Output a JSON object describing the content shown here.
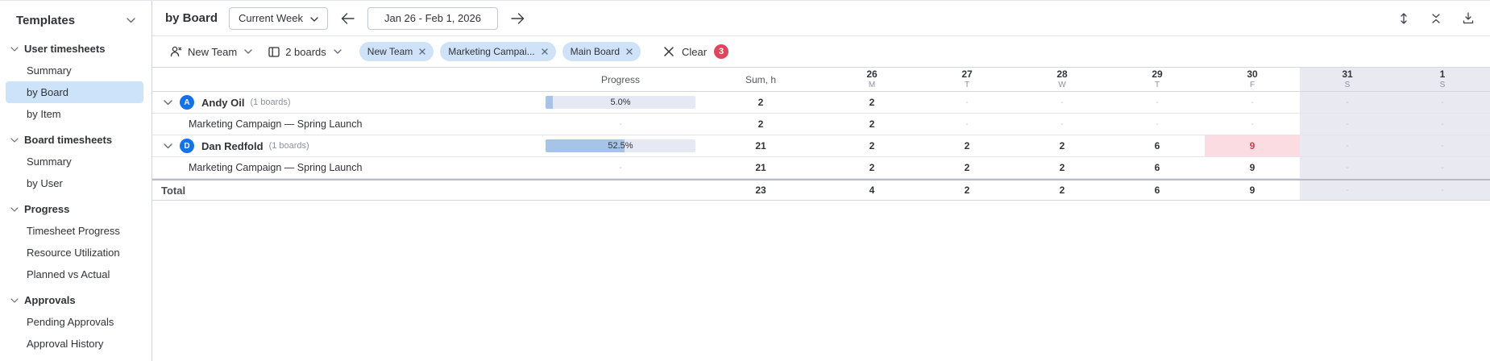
{
  "colors": {
    "selected_bg": "#cde3fa",
    "chip_bg": "#cfe2f8",
    "badge_bg": "#e2445c",
    "avatar_bg": "#1473e6",
    "progress_track": "#e6e8f4",
    "progress_fill": "#a6c4e8",
    "weekend_bg": "#e9e9f2",
    "alert_bg": "#fadce2",
    "alert_text": "#d83a52"
  },
  "sidebar": {
    "title": "Templates",
    "groups": [
      {
        "label": "User timesheets",
        "items": [
          {
            "label": "Summary",
            "selected": false
          },
          {
            "label": "by Board",
            "selected": true
          },
          {
            "label": "by Item",
            "selected": false
          }
        ]
      },
      {
        "label": "Board timesheets",
        "items": [
          {
            "label": "Summary",
            "selected": false
          },
          {
            "label": "by User",
            "selected": false
          }
        ]
      },
      {
        "label": "Progress",
        "items": [
          {
            "label": "Timesheet Progress",
            "selected": false
          },
          {
            "label": "Resource Utilization",
            "selected": false
          },
          {
            "label": "Planned vs Actual",
            "selected": false
          }
        ]
      },
      {
        "label": "Approvals",
        "items": [
          {
            "label": "Pending Approvals",
            "selected": false
          },
          {
            "label": "Approval History",
            "selected": false
          }
        ]
      }
    ]
  },
  "toolbar": {
    "title": "by Board",
    "period_select": "Current Week",
    "date_range": "Jan 26 - Feb 1, 2026",
    "icons": [
      "expand-vertical",
      "collapse-all",
      "download"
    ]
  },
  "filters": {
    "team_select": "New Team",
    "boards_select": "2 boards",
    "chips": [
      {
        "label": "New Team"
      },
      {
        "label": "Marketing Campai..."
      },
      {
        "label": "Main Board"
      }
    ],
    "clear_label": "Clear",
    "clear_count": "3"
  },
  "table": {
    "columns": {
      "progress": "Progress",
      "sum": "Sum, h"
    },
    "days": [
      {
        "num": "26",
        "dow": "M",
        "weekend": false
      },
      {
        "num": "27",
        "dow": "T",
        "weekend": false
      },
      {
        "num": "28",
        "dow": "W",
        "weekend": false
      },
      {
        "num": "29",
        "dow": "T",
        "weekend": false
      },
      {
        "num": "30",
        "dow": "F",
        "weekend": false
      },
      {
        "num": "31",
        "dow": "S",
        "weekend": true
      },
      {
        "num": "1",
        "dow": "S",
        "weekend": true
      }
    ],
    "rows": [
      {
        "type": "user",
        "name": "Andy Oil",
        "meta": "(1 boards)",
        "avatar": "A",
        "progress_label": "5.0%",
        "progress_pct": 5,
        "sum": "2",
        "cells": [
          "2",
          "-",
          "-",
          "-",
          "-",
          "-",
          "-"
        ]
      },
      {
        "type": "board",
        "name": "Marketing Campaign — Spring Launch",
        "sum": "2",
        "cells": [
          "2",
          "-",
          "-",
          "-",
          "-",
          "-",
          "-"
        ]
      },
      {
        "type": "user",
        "name": "Dan Redfold",
        "meta": "(1 boards)",
        "avatar": "D",
        "progress_label": "52.5%",
        "progress_pct": 52.5,
        "sum": "21",
        "cells": [
          "2",
          "2",
          "2",
          "6",
          "9",
          "-",
          "-"
        ],
        "alert_day_index": 4
      },
      {
        "type": "board",
        "name": "Marketing Campaign — Spring Launch",
        "sum": "21",
        "cells": [
          "2",
          "2",
          "2",
          "6",
          "9",
          "-",
          "-"
        ]
      },
      {
        "type": "total",
        "name": "Total",
        "sum": "23",
        "cells": [
          "4",
          "2",
          "2",
          "6",
          "9",
          "-",
          "-"
        ]
      }
    ]
  }
}
